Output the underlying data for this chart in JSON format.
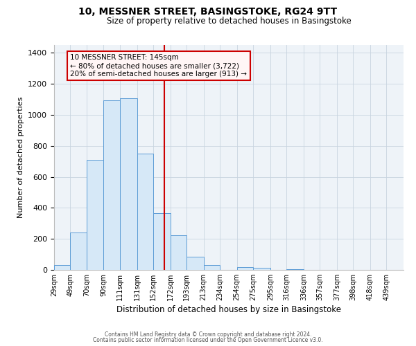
{
  "title": "10, MESSNER STREET, BASINGSTOKE, RG24 9TT",
  "subtitle": "Size of property relative to detached houses in Basingstoke",
  "xlabel": "Distribution of detached houses by size in Basingstoke",
  "ylabel": "Number of detached properties",
  "bar_labels": [
    "29sqm",
    "49sqm",
    "70sqm",
    "90sqm",
    "111sqm",
    "131sqm",
    "152sqm",
    "172sqm",
    "193sqm",
    "213sqm",
    "234sqm",
    "254sqm",
    "275sqm",
    "295sqm",
    "316sqm",
    "336sqm",
    "357sqm",
    "377sqm",
    "398sqm",
    "418sqm",
    "439sqm"
  ],
  "bar_values": [
    30,
    240,
    710,
    1095,
    1105,
    750,
    365,
    225,
    85,
    30,
    0,
    20,
    15,
    0,
    5,
    0,
    0,
    0,
    0,
    0,
    0
  ],
  "bar_color": "#d6e8f7",
  "bar_edge_color": "#5b9bd5",
  "property_label": "10 MESSNER STREET: 145sqm",
  "pct_smaller_label": "← 80% of detached houses are smaller (3,722)",
  "pct_larger_label": "20% of semi-detached houses are larger (913) →",
  "vline_color": "#cc0000",
  "vline_x": 145,
  "annotation_border_color": "#cc0000",
  "ylim": [
    0,
    1450
  ],
  "footnote1": "Contains HM Land Registry data © Crown copyright and database right 2024.",
  "footnote2": "Contains public sector information licensed under the Open Government Licence v3.0.",
  "bin_edges": [
    9,
    29,
    49,
    70,
    90,
    111,
    131,
    152,
    172,
    193,
    213,
    234,
    254,
    275,
    295,
    316,
    336,
    357,
    377,
    398,
    418,
    439
  ],
  "grid_color": "#c8d4e0",
  "yticks": [
    0,
    200,
    400,
    600,
    800,
    1000,
    1200,
    1400
  ]
}
